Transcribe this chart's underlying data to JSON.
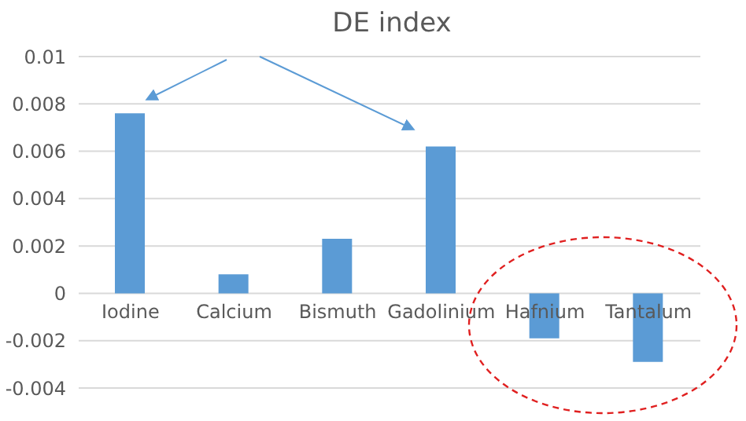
{
  "chart_data": {
    "type": "bar",
    "title": "DE index",
    "categories": [
      "Iodine",
      "Calcium",
      "Bismuth",
      "Gadolinium",
      "Hafnium",
      "Tantalum"
    ],
    "values": [
      0.0076,
      0.0008,
      0.0023,
      0.0062,
      -0.0019,
      -0.0029
    ],
    "color": "#5b9bd5",
    "ylim": [
      -0.004,
      0.01
    ],
    "yticks": [
      -0.004,
      -0.002,
      0,
      0.002,
      0.004,
      0.006,
      0.008,
      0.01
    ],
    "grid": "y",
    "legend": false
  }
}
